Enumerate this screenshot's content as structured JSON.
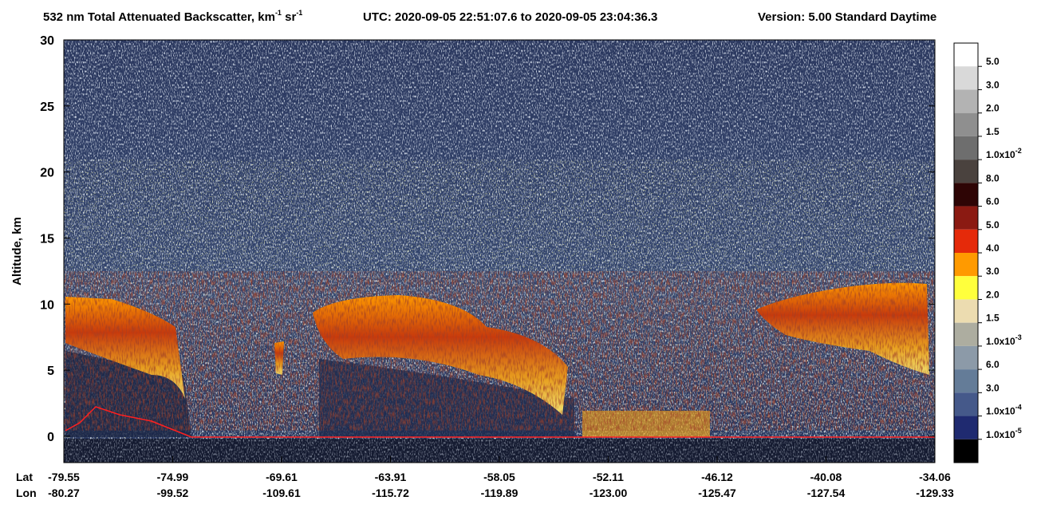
{
  "chart_data": {
    "type": "curtain",
    "title": [
      {
        "text": "532 nm Total Attenuated Backscatter, km"
      },
      {
        "sup": "-1"
      },
      {
        "text": " sr"
      },
      {
        "sup": "-1"
      }
    ],
    "utc": "UTC:  2020-09-05 22:51:07.6  to  2020-09-05 23:04:36.3",
    "version": "Version: 5.00  Standard  Daytime",
    "y_label": "Altitude, km",
    "ylim": [
      -2,
      30
    ],
    "yticks": [
      0,
      5,
      10,
      15,
      20,
      25,
      30
    ],
    "x_row_labels": {
      "lat": "Lat",
      "lon": "Lon"
    },
    "xticks": [
      {
        "lat": "-79.55",
        "lon": "-80.27"
      },
      {
        "lat": "-74.99",
        "lon": "-99.52"
      },
      {
        "lat": "-69.61",
        "lon": "-109.61"
      },
      {
        "lat": "-63.91",
        "lon": "-115.72"
      },
      {
        "lat": "-58.05",
        "lon": "-119.89"
      },
      {
        "lat": "-52.11",
        "lon": "-123.00"
      },
      {
        "lat": "-46.12",
        "lon": "-125.47"
      },
      {
        "lat": "-40.08",
        "lon": "-127.54"
      },
      {
        "lat": "-34.06",
        "lon": "-129.33"
      }
    ],
    "colorbar": {
      "colors": [
        "#ffffff",
        "#d9d9d9",
        "#b3b3b3",
        "#8f8f8f",
        "#6e6e6e",
        "#4a423e",
        "#2e0505",
        "#8b1a12",
        "#e52a0a",
        "#ff9a00",
        "#ffff3c",
        "#ecdcb0",
        "#adada0",
        "#8c9aa8",
        "#647c98",
        "#45598a",
        "#1f2a70",
        "#000000"
      ],
      "labels": [
        "5.0",
        "3.0",
        "2.0",
        "1.5",
        {
          "base": "1.0x10",
          "exp": "-2"
        },
        "8.0",
        "6.0",
        "5.0",
        "4.0",
        "3.0",
        "2.0",
        "1.5",
        {
          "base": "1.0x10",
          "exp": "-3"
        },
        "6.0",
        "3.0",
        {
          "base": "1.0x10",
          "exp": "-4"
        },
        {
          "base": "1.0x10",
          "exp": "-5"
        }
      ]
    }
  }
}
